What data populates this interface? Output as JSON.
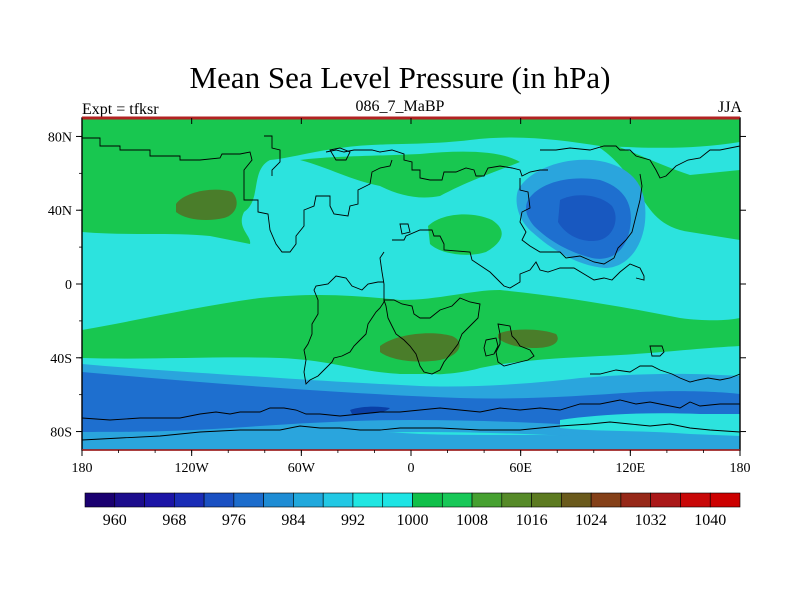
{
  "title": "Mean Sea Level Pressure (in hPa)",
  "left_label": "Expt = tfksr",
  "center_label": "086_7_MaBP",
  "right_label": "JJA",
  "chart_data": {
    "type": "heatmap",
    "variable": "Mean Sea Level Pressure",
    "units": "hPa",
    "season": "JJA",
    "x_ticks": [
      "180",
      "120W",
      "60W",
      "0",
      "60E",
      "120E",
      "180"
    ],
    "y_ticks": [
      "80N",
      "40N",
      "0",
      "40S",
      "80S"
    ],
    "xlim": [
      -180,
      180
    ],
    "ylim": [
      -90,
      90
    ],
    "colorbar": {
      "levels": [
        960,
        964,
        968,
        972,
        976,
        980,
        984,
        988,
        992,
        996,
        1000,
        1004,
        1008,
        1012,
        1016,
        1020,
        1024,
        1028,
        1032,
        1036,
        1040
      ],
      "labels": [
        "960",
        "968",
        "976",
        "984",
        "992",
        "1000",
        "1008",
        "1016",
        "1024",
        "1032",
        "1040"
      ],
      "colors": [
        "#1a0070",
        "#1c0c8c",
        "#1c14a6",
        "#1a2cb6",
        "#1a50c2",
        "#1c6ccc",
        "#1e8cd4",
        "#20a8dc",
        "#22c8e4",
        "#20e6e2",
        "#1ee4e4",
        "#10c04a",
        "#18c858",
        "#46a030",
        "#568a28",
        "#5c7a20",
        "#6a5a1c",
        "#844018",
        "#962818",
        "#aa1818",
        "#c80808",
        "#cc0000"
      ]
    }
  },
  "colors": {
    "cyan": "#2ce3de",
    "light_green": "#18c750",
    "green": "#44b84e",
    "olive": "#4a7d2a",
    "blue": "#1e6fcf",
    "light_blue": "#2aa5dd",
    "dark_blue": "#0a3fa6",
    "frame_red": "#b22222"
  }
}
